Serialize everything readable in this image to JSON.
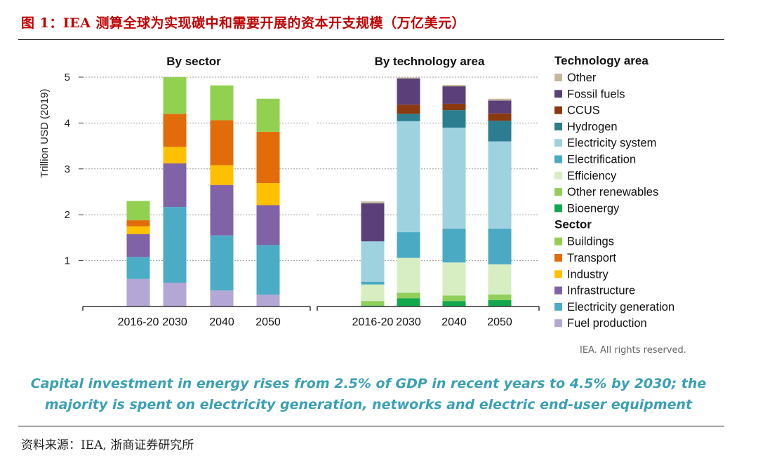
{
  "figure": {
    "title": "图 1：IEA 测算全球为实现碳中和需要开展的资本开支规模（万亿美元）",
    "source": "资料来源：IEA, 浙商证券研究所",
    "caption": "Capital investment in energy rises from 2.5% of GDP in recent years to 4.5% by 2030; the majority is spent on electricity generation, networks and electric end-user equipment",
    "rights": "IEA. All rights reserved."
  },
  "colors": {
    "Other": "#c4b89a",
    "Fossil fuels": "#5b3f78",
    "CCUS": "#8a3a0e",
    "Hydrogen": "#2b7d90",
    "Electricity system": "#9ed2df",
    "Electrification": "#4aaac3",
    "Efficiency": "#d6eec2",
    "Other renewables": "#8fcf5a",
    "Bioenergy": "#12a84e",
    "Buildings": "#92d050",
    "Transport": "#e36c0a",
    "Industry": "#ffc000",
    "Infrastructure": "#8063a6",
    "Electricity generation": "#4bacc6",
    "Fuel production": "#b4a7d6"
  },
  "chart_data": [
    {
      "type": "bar",
      "stacked": true,
      "title": "By sector",
      "ylabel": "Trillion USD (2019)",
      "ylim": [
        0,
        5
      ],
      "yticks": [
        1,
        2,
        3,
        4,
        5
      ],
      "grid": true,
      "categories": [
        "2016-20",
        "2030",
        "2040",
        "2050"
      ],
      "series": [
        {
          "name": "Fuel production",
          "values": [
            0.6,
            0.52,
            0.35,
            0.26
          ]
        },
        {
          "name": "Electricity generation",
          "values": [
            0.48,
            1.65,
            1.2,
            1.08
          ]
        },
        {
          "name": "Infrastructure",
          "values": [
            0.5,
            0.95,
            1.1,
            0.87
          ]
        },
        {
          "name": "Industry",
          "values": [
            0.17,
            0.36,
            0.43,
            0.48
          ]
        },
        {
          "name": "Transport",
          "values": [
            0.13,
            0.72,
            0.98,
            1.12
          ]
        },
        {
          "name": "Buildings",
          "values": [
            0.42,
            0.8,
            0.76,
            0.72
          ]
        }
      ]
    },
    {
      "type": "bar",
      "stacked": true,
      "title": "By technology area",
      "ylim": [
        0,
        5
      ],
      "grid": true,
      "categories": [
        "2016-20",
        "2030",
        "2040",
        "2050"
      ],
      "series": [
        {
          "name": "Bioenergy",
          "values": [
            0.02,
            0.18,
            0.12,
            0.14
          ]
        },
        {
          "name": "Other renewables",
          "values": [
            0.1,
            0.12,
            0.12,
            0.12
          ]
        },
        {
          "name": "Efficiency",
          "values": [
            0.36,
            0.76,
            0.72,
            0.66
          ]
        },
        {
          "name": "Electrification",
          "values": [
            0.06,
            0.56,
            0.74,
            0.78
          ]
        },
        {
          "name": "Electricity system",
          "values": [
            0.88,
            2.42,
            2.2,
            1.9
          ]
        },
        {
          "name": "Hydrogen",
          "values": [
            0.0,
            0.16,
            0.38,
            0.45
          ]
        },
        {
          "name": "CCUS",
          "values": [
            0.0,
            0.2,
            0.14,
            0.16
          ]
        },
        {
          "name": "Fossil fuels",
          "values": [
            0.83,
            0.57,
            0.38,
            0.28
          ]
        },
        {
          "name": "Other",
          "values": [
            0.04,
            0.02,
            0.03,
            0.04
          ]
        }
      ]
    }
  ],
  "legend": {
    "tech_title": "Technology area",
    "tech_items": [
      "Other",
      "Fossil fuels",
      "CCUS",
      "Hydrogen",
      "Electricity system",
      "Electrification",
      "Efficiency",
      "Other renewables",
      "Bioenergy"
    ],
    "sector_title": "Sector",
    "sector_items": [
      "Buildings",
      "Transport",
      "Industry",
      "Infrastructure",
      "Electricity generation",
      "Fuel production"
    ]
  }
}
